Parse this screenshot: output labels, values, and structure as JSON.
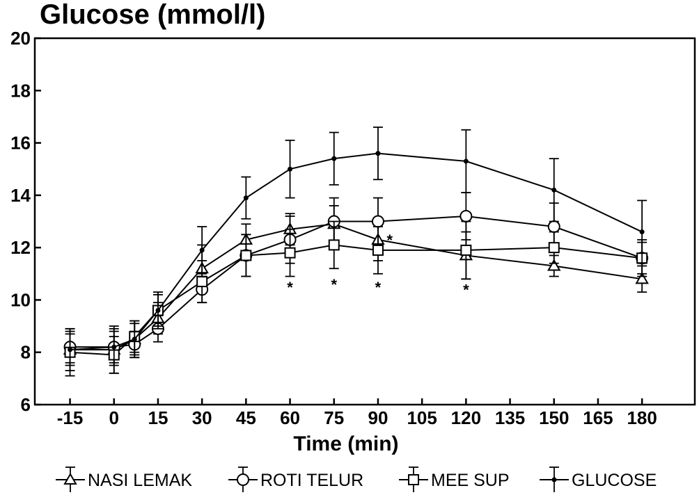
{
  "chart_data": {
    "type": "line",
    "title": "Glucose (mmol/l)",
    "xlabel": "Time (min)",
    "ylabel": "",
    "ylim": [
      6,
      20
    ],
    "y_ticks": [
      6,
      8,
      10,
      12,
      14,
      16,
      18,
      20
    ],
    "x_ticks": [
      -15,
      0,
      15,
      30,
      45,
      60,
      75,
      90,
      105,
      120,
      135,
      150,
      165,
      180
    ],
    "grid": false,
    "legend_position": "bottom",
    "series": [
      {
        "name": "NASI LEMAK",
        "marker": "triangle",
        "x": [
          -15,
          0,
          7,
          15,
          30,
          45,
          60,
          75,
          90,
          120,
          150,
          180
        ],
        "values": [
          8.1,
          8.1,
          8.5,
          9.3,
          11.2,
          12.3,
          12.7,
          12.9,
          12.3,
          11.7,
          11.3,
          10.8
        ],
        "error": [
          0.8,
          0.9,
          0.7,
          0.6,
          0.9,
          0.6,
          0.6,
          0.7,
          0.8,
          0.9,
          0.4,
          0.5
        ]
      },
      {
        "name": "ROTI TELUR",
        "marker": "diamond",
        "x": [
          -15,
          0,
          7,
          15,
          30,
          45,
          60,
          75,
          90,
          120,
          150,
          180
        ],
        "values": [
          8.2,
          8.2,
          8.3,
          8.9,
          10.4,
          11.7,
          12.3,
          13.0,
          13.0,
          13.2,
          12.8,
          11.6
        ],
        "error": [
          0.6,
          0.6,
          0.5,
          0.5,
          0.5,
          0.8,
          0.9,
          0.9,
          0.9,
          0.9,
          0.9,
          0.7
        ]
      },
      {
        "name": "MEE SUP",
        "marker": "square",
        "x": [
          -15,
          0,
          7,
          15,
          30,
          45,
          60,
          75,
          90,
          120,
          150,
          180
        ],
        "values": [
          8.0,
          7.9,
          8.6,
          9.6,
          10.7,
          11.7,
          11.8,
          12.1,
          11.9,
          11.9,
          12.0,
          11.6
        ],
        "error": [
          0.9,
          0.7,
          0.6,
          0.7,
          0.8,
          0.8,
          0.9,
          0.9,
          0.9,
          1.1,
          0.6,
          0.6
        ]
      },
      {
        "name": "GLUCOSE",
        "marker": "dot",
        "x": [
          -15,
          0,
          7,
          15,
          30,
          45,
          60,
          75,
          90,
          120,
          150,
          180
        ],
        "values": [
          8.1,
          8.2,
          8.5,
          9.6,
          11.9,
          13.9,
          15.0,
          15.4,
          15.6,
          15.3,
          14.2,
          12.6
        ],
        "error": [
          0.6,
          0.7,
          0.6,
          0.6,
          0.9,
          0.8,
          1.1,
          1.0,
          1.0,
          1.2,
          1.2,
          1.2
        ]
      }
    ],
    "annotations": [
      {
        "text": "*",
        "x": 60,
        "y": 10.6
      },
      {
        "text": "*",
        "x": 75,
        "y": 10.7
      },
      {
        "text": "*",
        "x": 90,
        "y": 10.6
      },
      {
        "text": "*",
        "x": 94,
        "y": 12.4
      },
      {
        "text": "*",
        "x": 120,
        "y": 10.5
      }
    ]
  }
}
